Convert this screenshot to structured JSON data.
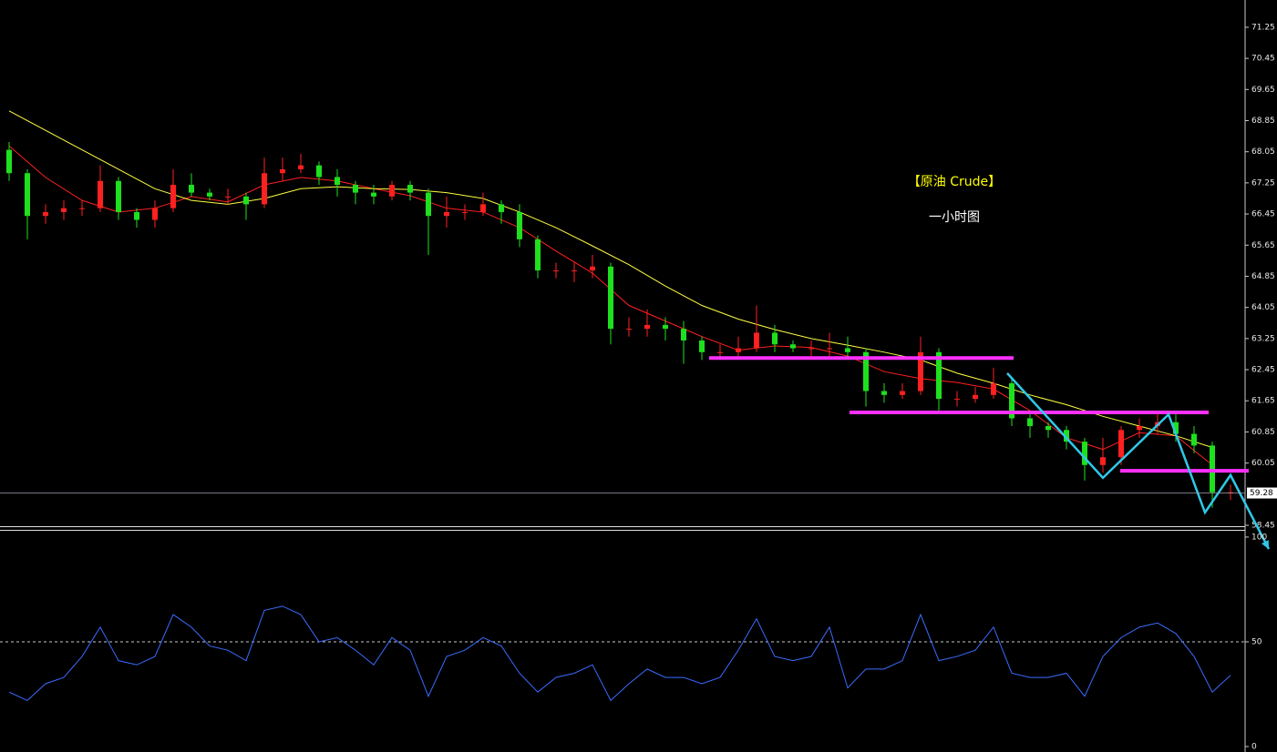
{
  "chart_data": [
    {
      "type": "candlestick",
      "title": "【原油 Crude】",
      "subtitle": "一小时图",
      "up_color": "#ff2020",
      "down_color": "#1ee01e",
      "open": [
        68.1,
        67.5,
        66.4,
        66.5,
        66.6,
        66.6,
        67.3,
        66.5,
        66.3,
        66.6,
        67.2,
        67.0,
        66.9,
        66.9,
        66.7,
        67.5,
        67.6,
        67.7,
        67.4,
        67.2,
        67.0,
        66.9,
        67.2,
        67.0,
        66.4,
        66.5,
        66.5,
        66.7,
        66.5,
        65.8,
        65.0,
        65.0,
        65.0,
        65.1,
        63.5,
        63.5,
        63.6,
        63.5,
        63.2,
        62.9,
        62.9,
        63.0,
        63.4,
        63.1,
        63.0,
        63.0,
        63.0,
        62.9,
        61.9,
        61.8,
        61.9,
        62.9,
        61.7,
        61.7,
        61.8,
        62.1,
        61.2,
        61.0,
        60.9,
        60.6,
        60.0,
        60.2,
        60.9,
        61.0,
        61.1,
        60.8,
        60.5,
        59.3
      ],
      "high": [
        68.3,
        67.6,
        66.7,
        66.8,
        66.8,
        67.7,
        67.4,
        66.6,
        66.8,
        67.6,
        67.5,
        67.1,
        67.1,
        67.0,
        67.9,
        67.9,
        68.0,
        67.8,
        67.6,
        67.3,
        67.2,
        67.3,
        67.3,
        67.1,
        66.9,
        66.7,
        67.0,
        66.8,
        66.7,
        65.9,
        65.2,
        65.2,
        65.4,
        65.2,
        63.8,
        64.0,
        63.8,
        63.7,
        63.3,
        63.1,
        63.3,
        64.1,
        63.6,
        63.2,
        63.2,
        63.4,
        63.3,
        63.0,
        62.1,
        62.1,
        63.3,
        63.0,
        61.9,
        62.0,
        62.5,
        62.2,
        61.3,
        61.1,
        61.0,
        60.7,
        60.7,
        61.0,
        61.2,
        61.4,
        61.3,
        61.0,
        60.6,
        59.5
      ],
      "low": [
        67.3,
        65.8,
        66.2,
        66.3,
        66.4,
        66.5,
        66.3,
        66.1,
        66.1,
        66.5,
        66.9,
        66.8,
        66.7,
        66.3,
        66.6,
        67.3,
        67.5,
        67.2,
        66.9,
        66.7,
        66.7,
        66.8,
        66.8,
        65.4,
        66.1,
        66.3,
        66.4,
        66.2,
        65.6,
        64.8,
        64.8,
        64.7,
        64.8,
        63.1,
        63.3,
        63.3,
        63.2,
        62.6,
        62.7,
        62.7,
        62.8,
        62.9,
        62.9,
        62.9,
        62.8,
        62.8,
        62.7,
        61.5,
        61.6,
        61.7,
        61.8,
        61.4,
        61.5,
        61.6,
        61.7,
        61.0,
        60.7,
        60.7,
        60.4,
        59.6,
        59.8,
        60.0,
        60.7,
        60.8,
        60.6,
        60.3,
        58.9,
        59.1
      ],
      "close": [
        67.5,
        66.4,
        66.5,
        66.6,
        66.6,
        67.3,
        66.5,
        66.3,
        66.6,
        67.2,
        67.0,
        66.9,
        66.9,
        66.7,
        67.5,
        67.6,
        67.7,
        67.4,
        67.2,
        67.0,
        66.9,
        67.2,
        67.0,
        66.4,
        66.5,
        66.5,
        66.7,
        66.5,
        65.8,
        65.0,
        65.0,
        65.0,
        65.1,
        63.5,
        63.5,
        63.6,
        63.5,
        63.2,
        62.9,
        62.9,
        63.0,
        63.4,
        63.1,
        63.0,
        63.0,
        63.0,
        62.9,
        61.9,
        61.8,
        61.9,
        62.9,
        61.7,
        61.7,
        61.8,
        62.1,
        61.2,
        61.0,
        60.9,
        60.6,
        60.0,
        60.2,
        60.9,
        61.0,
        61.1,
        60.8,
        60.5,
        59.3,
        59.3
      ],
      "series": [
        {
          "color": "#ff2020",
          "x": [
            0,
            2,
            4,
            6,
            8,
            10,
            12,
            14,
            16,
            18,
            20,
            22,
            24,
            26,
            28,
            30,
            32,
            34,
            36,
            38,
            40,
            42,
            44,
            46,
            48,
            50,
            52,
            54,
            56,
            58,
            60,
            62,
            64,
            66
          ],
          "values": [
            68.2,
            67.39,
            66.8,
            66.5,
            66.6,
            66.9,
            66.76,
            67.2,
            67.39,
            67.3,
            67.1,
            66.92,
            66.6,
            66.5,
            66.1,
            65.5,
            64.93,
            64.1,
            63.7,
            63.3,
            62.95,
            63.06,
            63.02,
            62.8,
            62.4,
            62.22,
            62.12,
            61.95,
            61.4,
            60.7,
            60.4,
            60.83,
            60.75,
            60.0
          ]
        },
        {
          "color": "#ffff40",
          "x": [
            0,
            2,
            4,
            6,
            8,
            10,
            12,
            14,
            16,
            18,
            20,
            22,
            24,
            26,
            28,
            30,
            32,
            34,
            36,
            38,
            40,
            42,
            44,
            46,
            48,
            50,
            52,
            54,
            56,
            58,
            60,
            62,
            64,
            66
          ],
          "values": [
            69.1,
            68.6,
            68.1,
            67.6,
            67.1,
            66.8,
            66.7,
            66.85,
            67.1,
            67.15,
            67.1,
            67.08,
            67.0,
            66.85,
            66.5,
            66.1,
            65.63,
            65.15,
            64.6,
            64.1,
            63.75,
            63.48,
            63.25,
            63.08,
            62.9,
            62.7,
            62.36,
            62.1,
            61.8,
            61.55,
            61.25,
            61.0,
            60.75,
            60.45
          ]
        }
      ],
      "levels": [
        {
          "color": "#ff30ff",
          "y": 62.75,
          "x": [
            38.4,
            55.1
          ]
        },
        {
          "color": "#ff30ff",
          "y": 61.35,
          "x": [
            46.1,
            65.8
          ]
        },
        {
          "color": "#ff30ff",
          "y": 59.85,
          "x": [
            60.95,
            68
          ]
        }
      ],
      "arrow": {
        "color": "#30c8e8",
        "x": [
          54.75,
          60,
          63.6,
          65.6,
          67,
          69.1
        ],
        "y": [
          62.36,
          59.67,
          61.3,
          58.78,
          59.74,
          57.84
        ]
      },
      "last_price": 59.28,
      "ylim": [
        58.38,
        71.95
      ],
      "yticks": [
        71.25,
        70.45,
        69.65,
        68.85,
        68.05,
        67.25,
        66.45,
        65.65,
        64.85,
        64.05,
        63.25,
        62.45,
        61.65,
        60.85,
        60.05,
        58.45
      ]
    },
    {
      "type": "line",
      "color": "#3a6cff",
      "values": [
        26,
        22,
        30,
        33,
        43,
        57,
        41,
        39,
        43,
        63,
        57,
        48,
        46,
        41,
        65,
        67,
        63,
        50,
        52,
        46,
        39,
        52,
        46,
        24,
        43,
        46,
        52,
        48,
        35,
        26,
        33,
        35,
        39,
        22,
        30,
        37,
        33,
        33,
        30,
        33,
        46,
        61,
        43,
        41,
        43,
        57,
        28,
        37,
        37,
        41,
        63,
        41,
        43,
        46,
        57,
        35,
        33,
        33,
        35,
        24,
        43,
        52,
        57,
        59,
        54,
        43,
        26,
        34
      ],
      "ylim": [
        -2.6,
        103
      ],
      "yticks": [
        0,
        50,
        100
      ],
      "midline": 50
    }
  ]
}
